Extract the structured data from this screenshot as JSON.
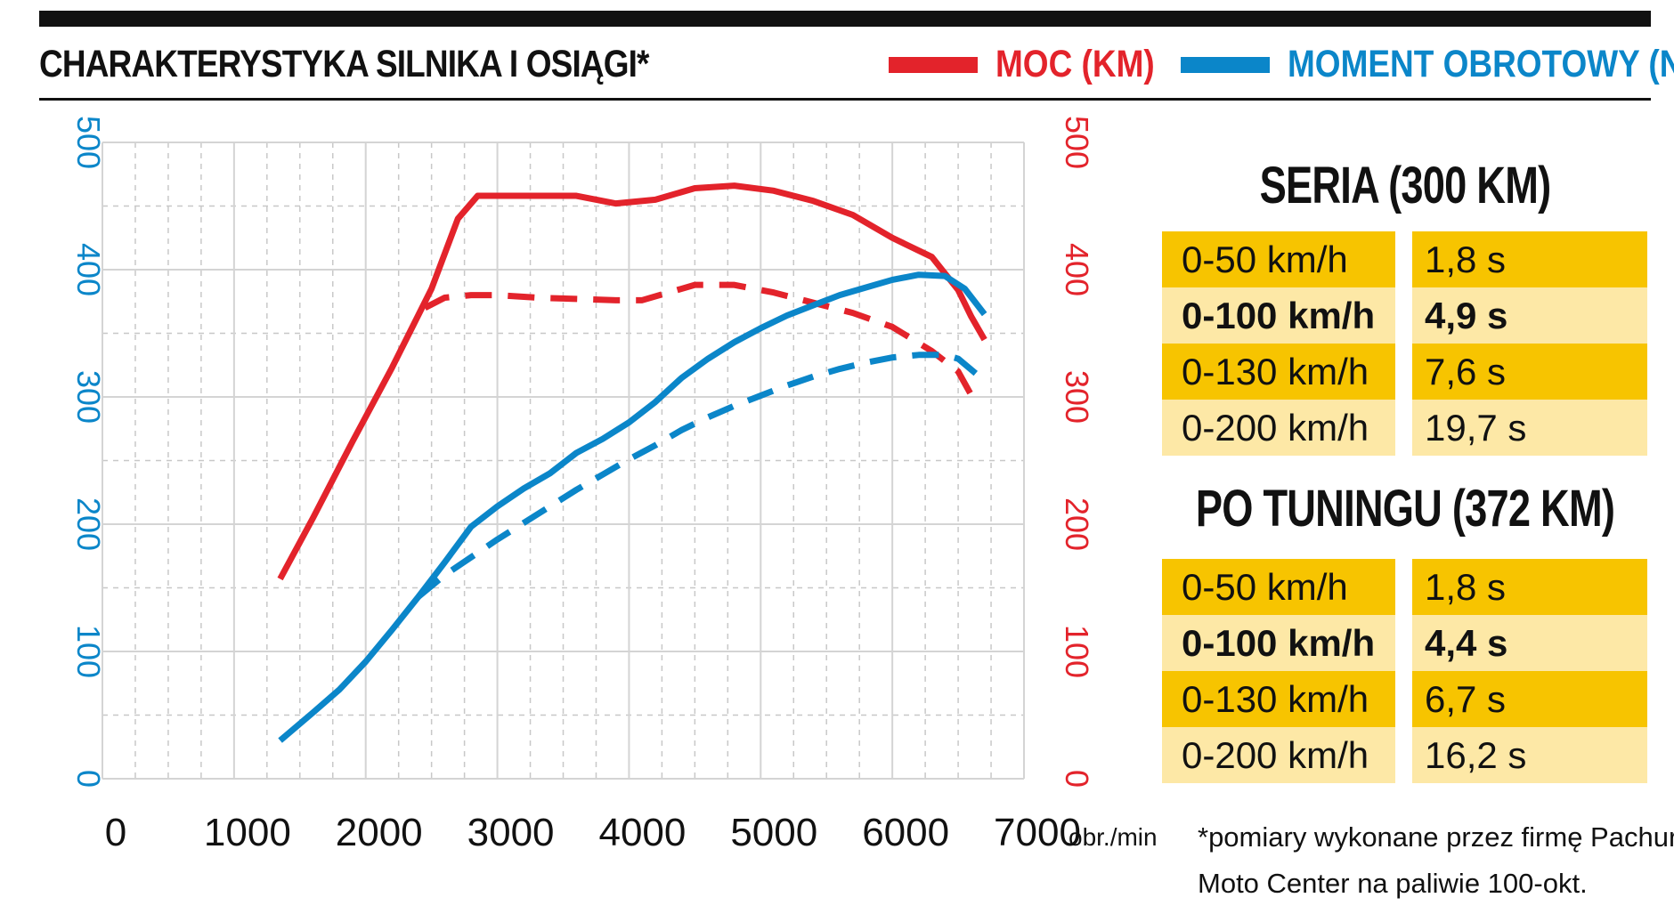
{
  "header": {
    "title": "CHARAKTERYSTYKA SILNIKA I OSIĄGI*",
    "legend_power": "MOC (KM)",
    "legend_torque": "MOMENT OBROTOWY (Nm)"
  },
  "colors": {
    "power": "#e3232b",
    "torque": "#0b86c9",
    "accent_dark": "#f7c400",
    "accent_light": "#fde8a6"
  },
  "chart_data": {
    "type": "line",
    "title": "CHARAKTERYSTYKA SILNIKA I OSIĄGI*",
    "x_unit_label": "obr./min",
    "xlim": [
      0,
      7000
    ],
    "ylim_left": [
      0,
      500
    ],
    "ylim_right": [
      0,
      500
    ],
    "x_ticks": [
      0,
      1000,
      2000,
      3000,
      4000,
      5000,
      6000,
      7000
    ],
    "y_ticks": [
      0,
      100,
      200,
      300,
      400,
      500
    ],
    "grid": true,
    "legend_position": "top-right",
    "series": [
      {
        "name": "MOC (KM)",
        "axis": "right",
        "style": "solid",
        "color": "#e3232b",
        "x": [
          1350,
          1600,
          1900,
          2200,
          2500,
          2700,
          2850,
          3000,
          3300,
          3600,
          3900,
          4200,
          4500,
          4800,
          5100,
          5400,
          5700,
          6000,
          6300,
          6500,
          6600,
          6700
        ],
        "y": [
          157,
          205,
          265,
          323,
          385,
          440,
          458,
          458,
          458,
          458,
          452,
          455,
          464,
          466,
          462,
          454,
          443,
          425,
          410,
          384,
          363,
          345
        ]
      },
      {
        "name": "MOC (KM)",
        "axis": "right",
        "style": "dashed",
        "color": "#e3232b",
        "x": [
          2450,
          2600,
          2800,
          3000,
          3300,
          3600,
          3900,
          4100,
          4300,
          4500,
          4800,
          5100,
          5400,
          5700,
          6000,
          6300,
          6500,
          6650
        ],
        "y": [
          370,
          378,
          380,
          380,
          378,
          377,
          376,
          376,
          382,
          388,
          388,
          382,
          374,
          366,
          355,
          336,
          320,
          292
        ]
      },
      {
        "name": "MOMENT OBROTOWY (Nm)",
        "axis": "left",
        "style": "solid",
        "color": "#0b86c9",
        "x": [
          1350,
          1600,
          1800,
          2000,
          2200,
          2400,
          2600,
          2800,
          3000,
          3200,
          3400,
          3600,
          3800,
          4000,
          4200,
          4400,
          4600,
          4800,
          5000,
          5200,
          5400,
          5600,
          5800,
          6000,
          6200,
          6400,
          6550,
          6700
        ],
        "y": [
          30,
          52,
          70,
          92,
          117,
          143,
          170,
          198,
          214,
          228,
          240,
          256,
          267,
          280,
          296,
          315,
          330,
          343,
          354,
          364,
          372,
          380,
          386,
          392,
          396,
          395,
          385,
          365
        ]
      },
      {
        "name": "MOMENT OBROTOWY (Nm)",
        "axis": "left",
        "style": "dashed",
        "color": "#0b86c9",
        "x": [
          2400,
          2600,
          2800,
          3000,
          3200,
          3400,
          3600,
          3800,
          4000,
          4200,
          4400,
          4600,
          4800,
          5000,
          5200,
          5400,
          5600,
          5800,
          6000,
          6200,
          6400,
          6500,
          6650
        ],
        "y": [
          143,
          160,
          174,
          188,
          201,
          214,
          227,
          239,
          251,
          262,
          274,
          284,
          293,
          301,
          309,
          316,
          322,
          327,
          331,
          333,
          333,
          330,
          317
        ]
      }
    ]
  },
  "tables": [
    {
      "title": "SERIA (300 KM)",
      "rows": [
        {
          "label": "0-50 km/h",
          "value": "1,8 s",
          "bold": false
        },
        {
          "label": "0-100 km/h",
          "value": "4,9 s",
          "bold": true
        },
        {
          "label": "0-130 km/h",
          "value": "7,6 s",
          "bold": false
        },
        {
          "label": "0-200 km/h",
          "value": "19,7 s",
          "bold": false
        }
      ]
    },
    {
      "title": "PO TUNINGU (372 KM)",
      "rows": [
        {
          "label": "0-50 km/h",
          "value": "1,8 s",
          "bold": false
        },
        {
          "label": "0-100 km/h",
          "value": "4,4 s",
          "bold": true
        },
        {
          "label": "0-130 km/h",
          "value": "6,7 s",
          "bold": false
        },
        {
          "label": "0-200 km/h",
          "value": "16,2 s",
          "bold": false
        }
      ]
    }
  ],
  "footnote": {
    "line1": "*pomiary wykonane przez firmę Pachura",
    "line2": "Moto Center na paliwie 100-okt."
  }
}
